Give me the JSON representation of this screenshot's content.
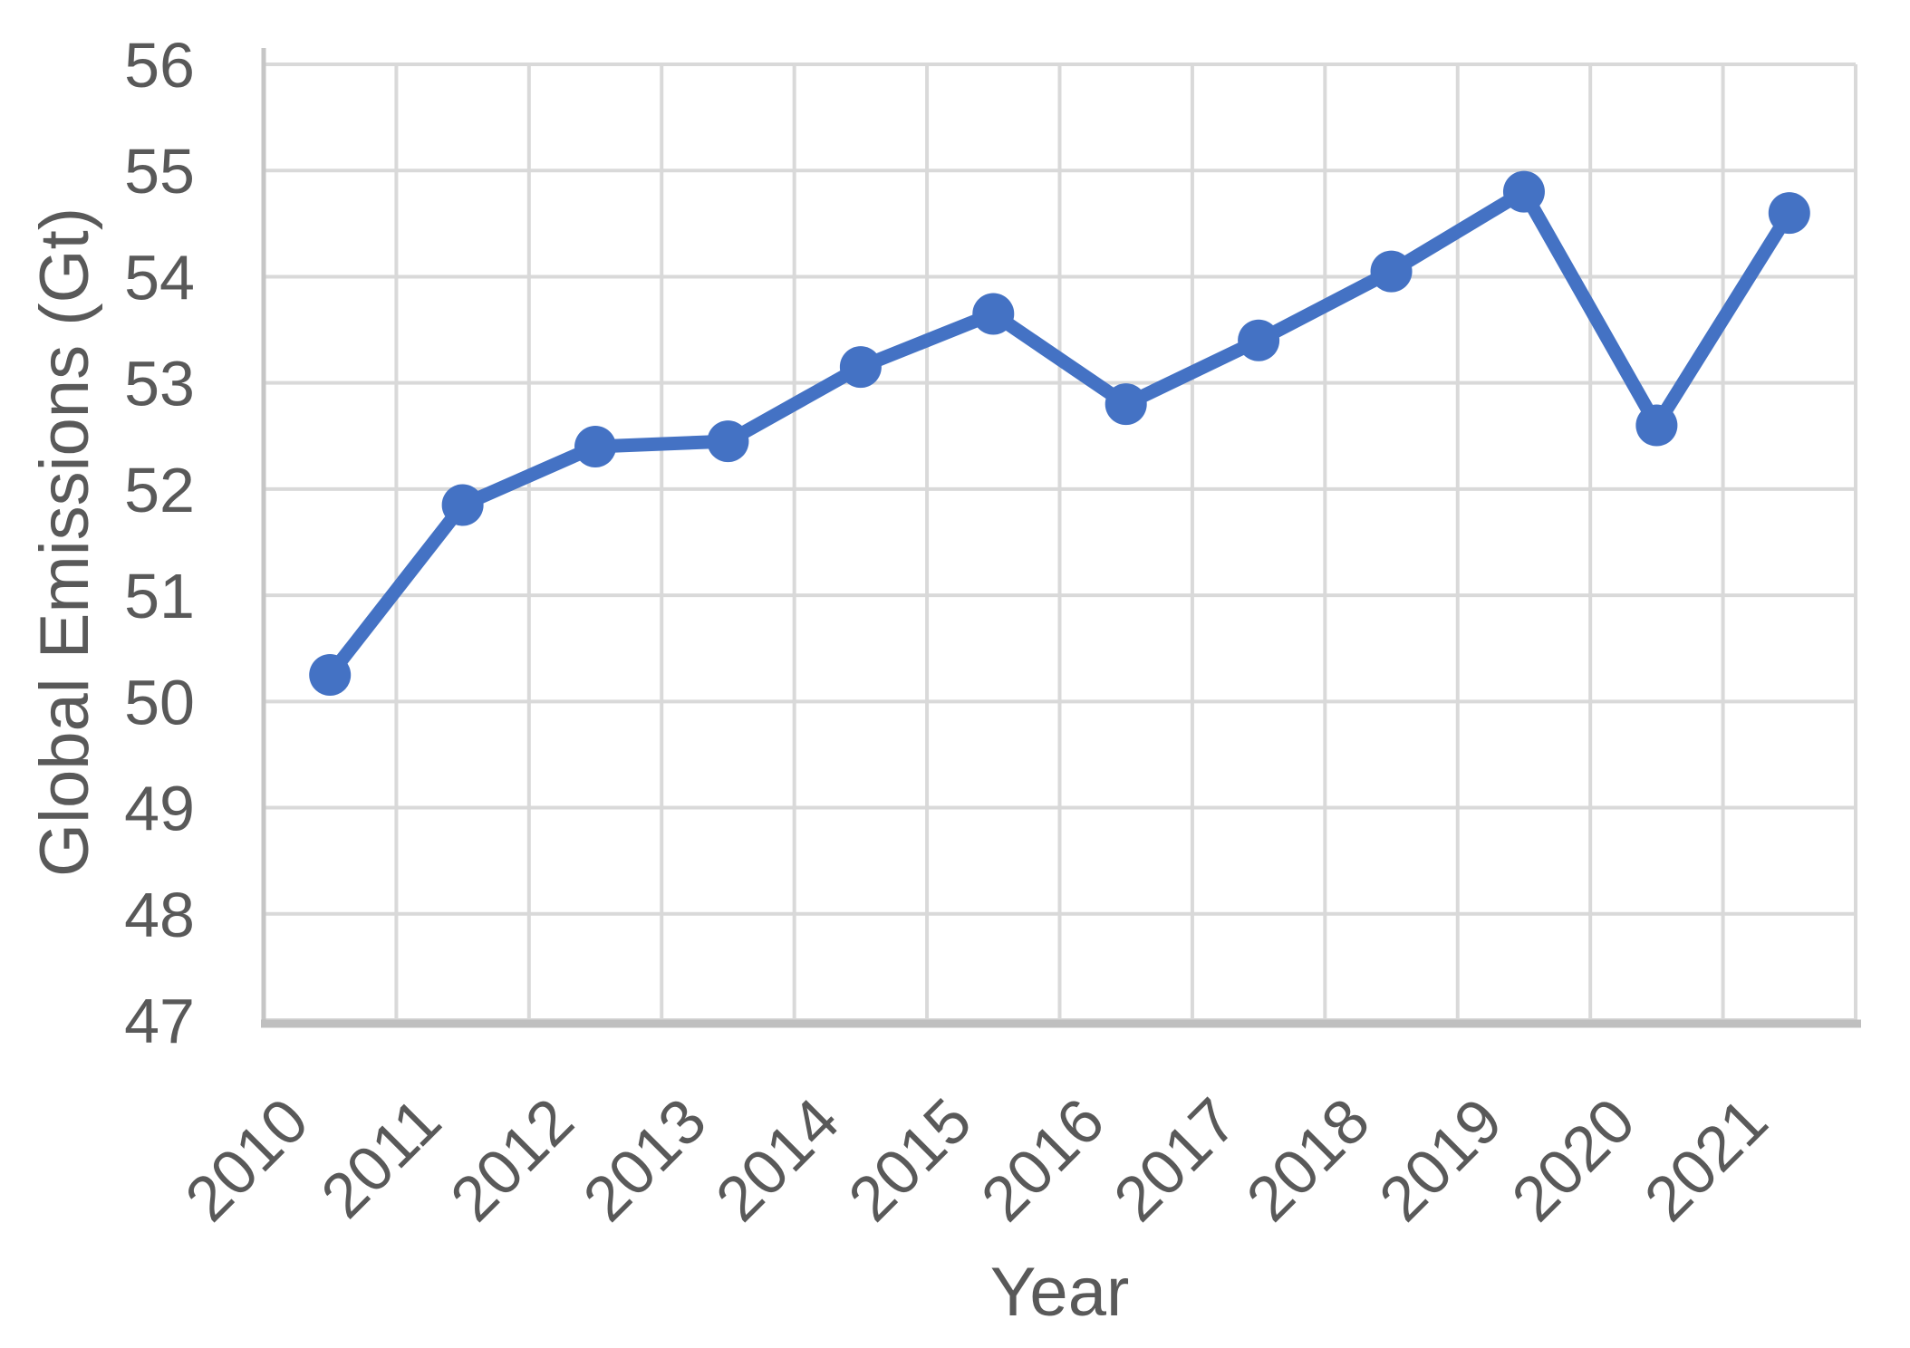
{
  "chart_data": {
    "type": "line",
    "title": "",
    "xlabel": "Year",
    "ylabel": "Global Emissions (Gt)",
    "categories": [
      "2010",
      "2011",
      "2012",
      "2013",
      "2014",
      "2015",
      "2016",
      "2017",
      "2018",
      "2019",
      "2020",
      "2021"
    ],
    "series": [
      {
        "name": "Global Emissions (Gt)",
        "values": [
          50.25,
          51.85,
          52.4,
          52.45,
          53.15,
          53.65,
          52.8,
          53.4,
          54.05,
          54.8,
          52.6,
          54.6
        ]
      }
    ],
    "ylim": [
      47,
      56
    ],
    "yticks": [
      47,
      48,
      49,
      50,
      51,
      52,
      53,
      54,
      55,
      56
    ],
    "x_tick_rotation": -45,
    "grid": true,
    "legend": "none",
    "marker_style": "circle",
    "colors": {
      "line": "#4472C4",
      "marker": "#4472C4",
      "grid": "#D9D9D9",
      "axis": "#BFBFBF",
      "text": "#595959",
      "background": "#FFFFFF"
    }
  }
}
